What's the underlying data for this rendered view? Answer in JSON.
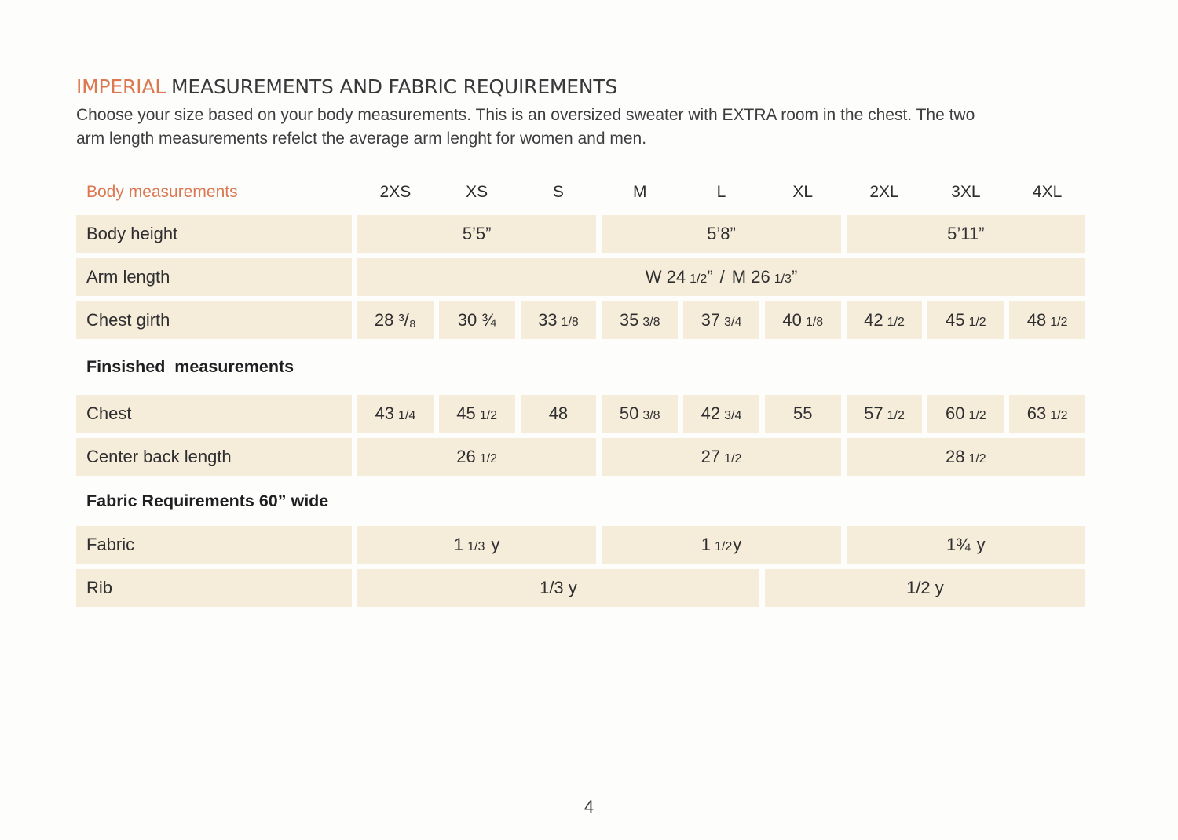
{
  "colors": {
    "accent": "#db7851",
    "cell_background": "#f5ecd9",
    "text": "#2f2f31"
  },
  "header": {
    "title_accent": "IMPERIAL",
    "title_rest": "MEASUREMENTS AND FABRIC REQUIREMENTS",
    "intro_lines": [
      "Choose your size based on your body measurements. This is an oversized sweater with EXTRA room in the chest. The two",
      "arm length measurements refelct the average arm lenght for women and men."
    ]
  },
  "table": {
    "columns_label": "Body measurements",
    "sizes": [
      "2XS",
      "XS",
      "S",
      "M",
      "L",
      "XL",
      "2XL",
      "3XL",
      "4XL"
    ],
    "body_height": {
      "label": "Body height",
      "values": [
        "5’5”",
        "5’8”",
        "5’11”"
      ]
    },
    "arm_length": {
      "label": "Arm length",
      "parts": [
        "W 24",
        "1/2",
        "”",
        "/",
        "M 26",
        "1/3",
        "”"
      ]
    },
    "chest_girth": {
      "label": "Chest girth",
      "cells": [
        {
          "w": "28",
          "f": "³/₈"
        },
        {
          "w": "30",
          "f": "¾"
        },
        {
          "w": "33",
          "f": "1/8"
        },
        {
          "w": "35",
          "f": "3/8"
        },
        {
          "w": "37",
          "f": "3/4"
        },
        {
          "w": "40",
          "f": "1/8"
        },
        {
          "w": "42",
          "f": "1/2"
        },
        {
          "w": "45",
          "f": "1/2"
        },
        {
          "w": "48",
          "f": "1/2"
        }
      ]
    },
    "finished_heading": "Finsished  measurements",
    "chest": {
      "label": "Chest",
      "cells": [
        {
          "w": "43",
          "f": "1/4"
        },
        {
          "w": "45",
          "f": "1/2"
        },
        {
          "w": "48"
        },
        {
          "w": "50",
          "f": "3/8"
        },
        {
          "w": "42",
          "f": "3/4"
        },
        {
          "w": "55"
        },
        {
          "w": "57",
          "f": "1/2"
        },
        {
          "w": "60",
          "f": "1/2"
        },
        {
          "w": "63",
          "f": "1/2"
        }
      ]
    },
    "center_back": {
      "label": "Center back length",
      "cells": [
        {
          "w": "26",
          "f": "1/2"
        },
        {
          "w": "27",
          "f": "1/2"
        },
        {
          "w": "28",
          "f": "1/2"
        }
      ]
    },
    "fabric_heading": "Fabric Requirements 60” wide",
    "fabric": {
      "label": "Fabric",
      "cells": [
        {
          "w": "1",
          "f": "1/3",
          "s": "y"
        },
        {
          "w": "1",
          "f": "1/2",
          "s": "y"
        },
        {
          "w": "1¾",
          "s": "y"
        }
      ]
    },
    "rib": {
      "label": "Rib",
      "values": [
        "1/3 y",
        "1/2 y"
      ]
    }
  },
  "footer": {
    "page_number": "4"
  }
}
